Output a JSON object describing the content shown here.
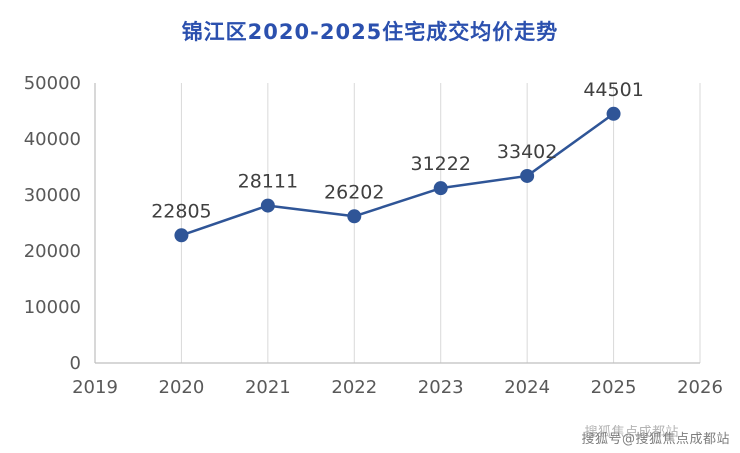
{
  "title": "锦江区2020-2025住宅成交均价走势",
  "watermark": {
    "main": "搜狐号@搜狐焦点成都站",
    "shadow": "搜狐焦点成都站"
  },
  "colors": {
    "title": "#2b50ae",
    "line": "#2f5597",
    "marker": "#2f5597",
    "grid": "#d9d9d9",
    "axis": "#bfbfbf",
    "tick_label": "#595959",
    "data_label": "#404040"
  },
  "chart_data": {
    "type": "line",
    "title": "锦江区2020-2025住宅成交均价走势",
    "x": [
      2020,
      2021,
      2022,
      2023,
      2024,
      2025
    ],
    "values": [
      22805,
      28111,
      26202,
      31222,
      33402,
      44501
    ],
    "x_ticks": [
      2019,
      2020,
      2021,
      2022,
      2023,
      2024,
      2025,
      2026
    ],
    "y_ticks": [
      0,
      10000,
      20000,
      30000,
      40000,
      50000
    ],
    "xlim": [
      2019,
      2026
    ],
    "ylim": [
      0,
      50000
    ],
    "xlabel": "",
    "ylabel": "",
    "grid": "vertical",
    "legend": "none",
    "marker": "circle"
  }
}
